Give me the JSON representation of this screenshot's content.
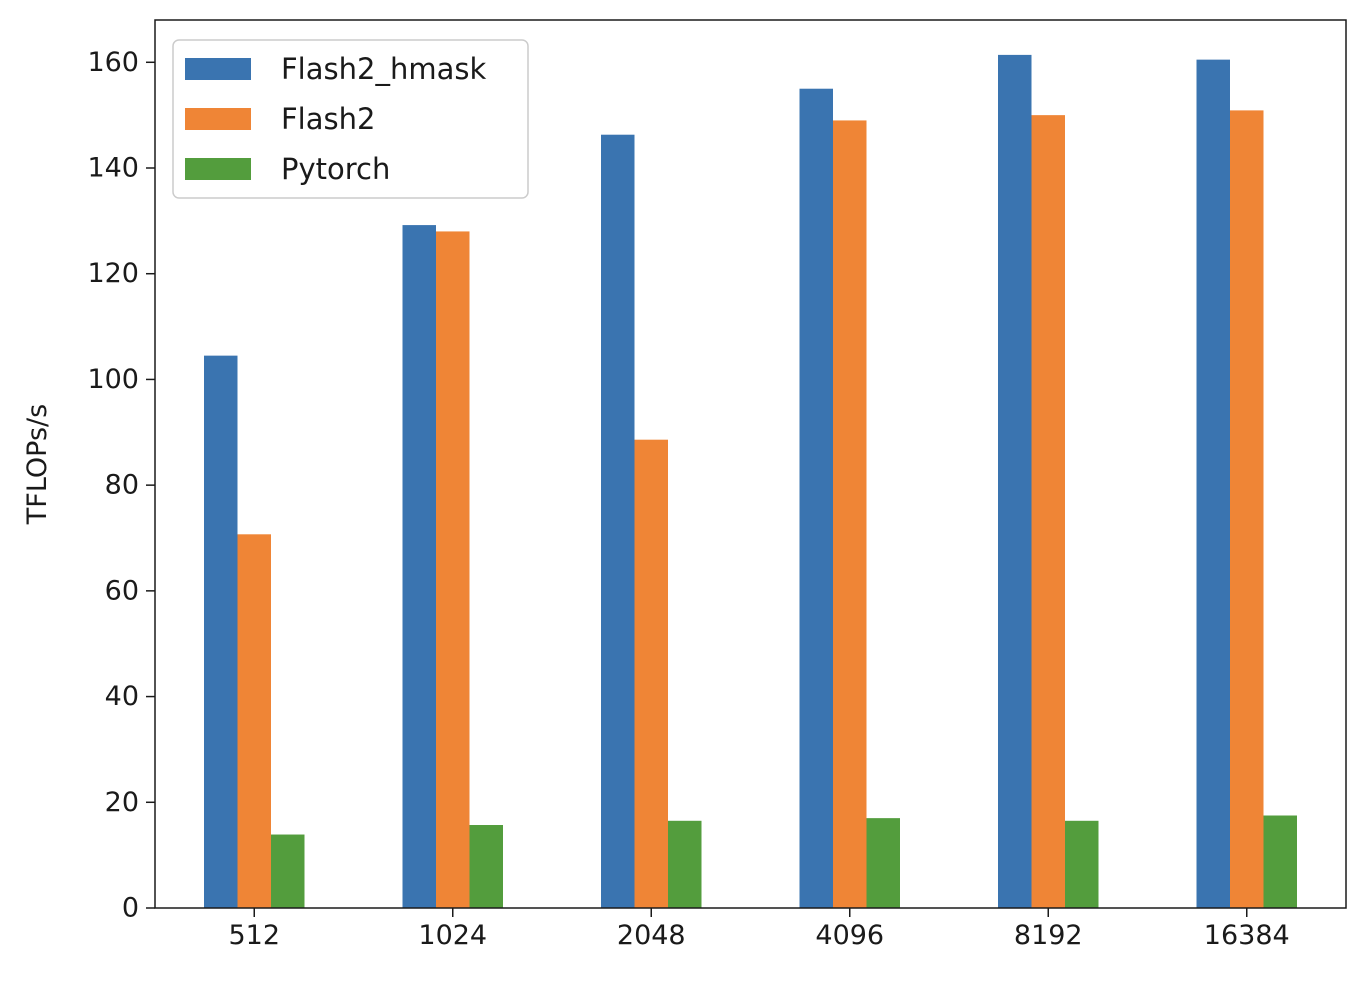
{
  "chart_data": {
    "type": "bar",
    "title": "",
    "xlabel": "",
    "ylabel": "TFLOPs/s",
    "ylim": [
      0,
      168
    ],
    "yticks": [
      0,
      20,
      40,
      60,
      80,
      100,
      120,
      140,
      160
    ],
    "ytick_labels": [
      "0",
      "20",
      "40",
      "60",
      "80",
      "100",
      "120",
      "140",
      "160"
    ],
    "grid": false,
    "legend_position": "top-left",
    "categories": [
      "512",
      "1024",
      "2048",
      "4096",
      "8192",
      "16384"
    ],
    "series": [
      {
        "name": "Flash2_hmask",
        "color": "#3a74b0",
        "values": [
          104.5,
          129.2,
          146.3,
          155.0,
          161.4,
          160.5
        ]
      },
      {
        "name": "Flash2",
        "color": "#ef8536",
        "values": [
          70.7,
          128.0,
          88.6,
          149.0,
          150.0,
          150.9
        ]
      },
      {
        "name": "Pytorch",
        "color": "#539d3d",
        "values": [
          13.9,
          15.7,
          16.5,
          17.0,
          16.5,
          17.5
        ]
      }
    ]
  }
}
